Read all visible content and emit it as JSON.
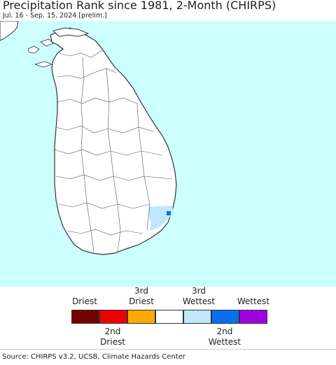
{
  "header": {
    "title": "Precipitation Rank since 1981, 2-Month (CHIRPS)",
    "subtitle": "Jul. 16 - Sep. 15, 2024 [prelim.]"
  },
  "map": {
    "region": "Sri Lanka",
    "colors": {
      "ocean": "#ccffff",
      "land": "#ffffff",
      "border": "#333333",
      "third_wettest": "#bfe8fb",
      "second_wettest": "#0a6ef0"
    }
  },
  "legend": {
    "top_labels": [
      "Driest",
      "3rd\nDriest",
      "3rd\nWettest",
      "Wettest"
    ],
    "bottom_labels": [
      "2nd\nDriest",
      "2nd\nWettest"
    ],
    "colors": [
      "#750000",
      "#ee0000",
      "#ffaa00",
      "#ffffff",
      "#bfe8fb",
      "#0a6ef0",
      "#a000e0"
    ]
  },
  "footer": {
    "source": "Source: CHIRPS v3.2, UCSB, Climate Hazards Center"
  }
}
